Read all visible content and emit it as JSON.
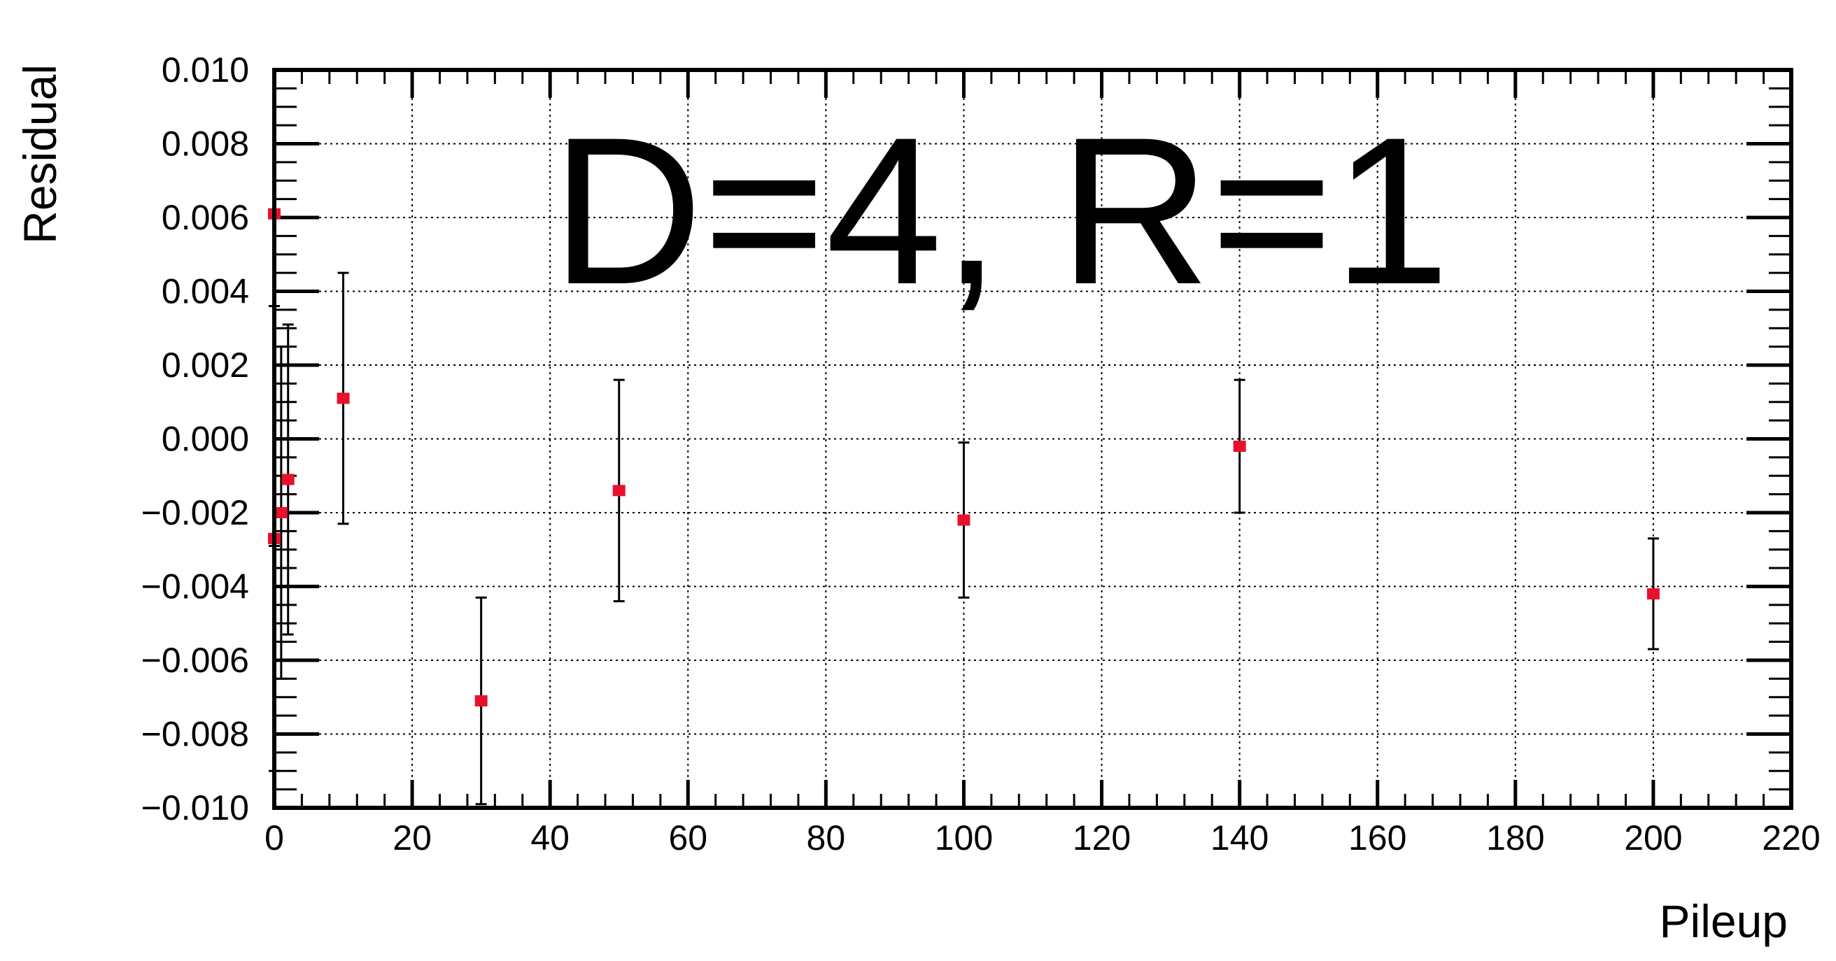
{
  "chart_data": {
    "type": "scatter",
    "xlabel": "Pileup",
    "ylabel": "Residual",
    "xlim": [
      0,
      220
    ],
    "ylim": [
      -0.01,
      0.01
    ],
    "x_ticks": [
      0,
      20,
      40,
      60,
      80,
      100,
      120,
      140,
      160,
      180,
      200,
      220
    ],
    "x_tick_labels": [
      "0",
      "20",
      "40",
      "60",
      "80",
      "100",
      "120",
      "140",
      "160",
      "180",
      "200",
      "220"
    ],
    "y_ticks": [
      -0.01,
      -0.008,
      -0.006,
      -0.004,
      -0.002,
      0.0,
      0.002,
      0.004,
      0.006,
      0.008,
      0.01
    ],
    "y_tick_labels": [
      "−0.010",
      "−0.008",
      "−0.006",
      "−0.004",
      "−0.002",
      "0.000",
      "0.002",
      "0.004",
      "0.006",
      "0.008",
      "0.010"
    ],
    "grid": true,
    "annotation": "D=4,  R=1",
    "marker_color": "#e8112d",
    "errorbar_color": "#000000",
    "series": [
      {
        "points": [
          {
            "x": 0,
            "y": 0.0061,
            "err": 0.009
          },
          {
            "x": 0,
            "y": -0.0027,
            "err": 0.0063
          },
          {
            "x": 1,
            "y": -0.002,
            "err": 0.0045
          },
          {
            "x": 2,
            "y": -0.0011,
            "err": 0.0042
          },
          {
            "x": 10,
            "y": 0.0011,
            "err": 0.0034
          },
          {
            "x": 30,
            "y": -0.0071,
            "err": 0.0028
          },
          {
            "x": 50,
            "y": -0.0014,
            "err": 0.003
          },
          {
            "x": 100,
            "y": -0.0022,
            "err": 0.0021
          },
          {
            "x": 140,
            "y": -0.0002,
            "err": 0.0018
          },
          {
            "x": 200,
            "y": -0.0042,
            "err": 0.0015
          }
        ]
      }
    ]
  }
}
